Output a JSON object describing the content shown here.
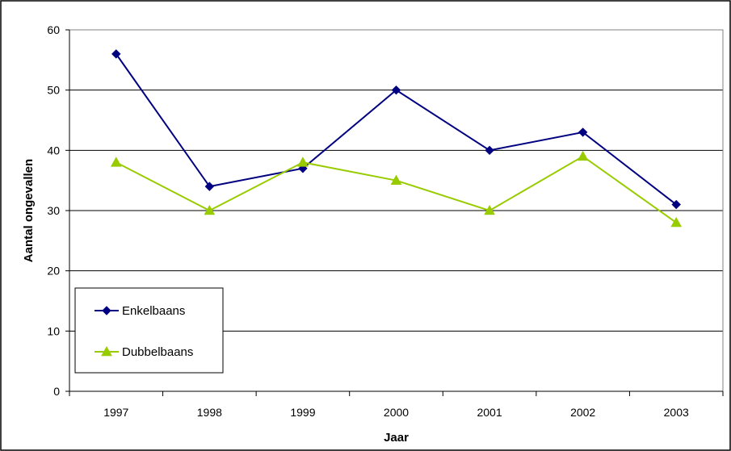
{
  "chart_data": {
    "type": "line",
    "categories": [
      "1997",
      "1998",
      "1999",
      "2000",
      "2001",
      "2002",
      "2003"
    ],
    "series": [
      {
        "name": "Enkelbaans",
        "values": [
          56,
          34,
          37,
          50,
          40,
          43,
          31
        ],
        "color": "#000080",
        "marker": "diamond"
      },
      {
        "name": "Dubbelbaans",
        "values": [
          38,
          30,
          38,
          35,
          30,
          39,
          28
        ],
        "color": "#99CC00",
        "marker": "triangle"
      }
    ],
    "xlabel": "Jaar",
    "ylabel": "Aantal ongevallen",
    "ylim": [
      0,
      60
    ],
    "yticks": [
      0,
      10,
      20,
      30,
      40,
      50,
      60
    ],
    "grid": true,
    "legend": "bottom-left"
  }
}
